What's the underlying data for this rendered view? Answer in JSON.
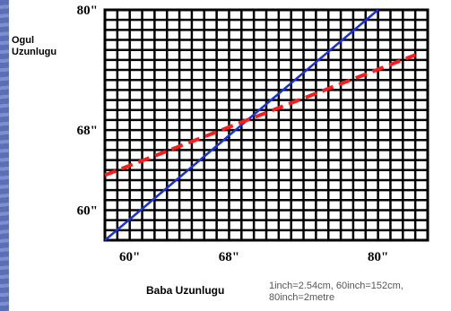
{
  "chart_data": {
    "type": "line",
    "ylabel_lines": [
      "Ogul",
      "Uzunlugu"
    ],
    "xlabel": "Baba Uzunlugu",
    "x_ticks": [
      {
        "value": 60,
        "label": "60\""
      },
      {
        "value": 68,
        "label": "68\""
      },
      {
        "value": 80,
        "label": "80\""
      }
    ],
    "y_ticks": [
      {
        "value": 60,
        "label": "60\""
      },
      {
        "value": 68,
        "label": "68\""
      },
      {
        "value": 80,
        "label": "80\""
      }
    ],
    "xlim": [
      58,
      84
    ],
    "ylim": [
      57,
      80
    ],
    "grid": true,
    "series": [
      {
        "color": "#1530e0",
        "dash": "solid",
        "points": [
          [
            58,
            57
          ],
          [
            80,
            80
          ]
        ]
      },
      {
        "color": "#ff1a1a",
        "dash": "dashed",
        "points": [
          [
            58,
            63.5
          ],
          [
            83,
            75.5
          ]
        ]
      }
    ],
    "note_lines": [
      "1inch=2.54cm, 60inch=152cm,",
      "80inch=2metre"
    ]
  }
}
